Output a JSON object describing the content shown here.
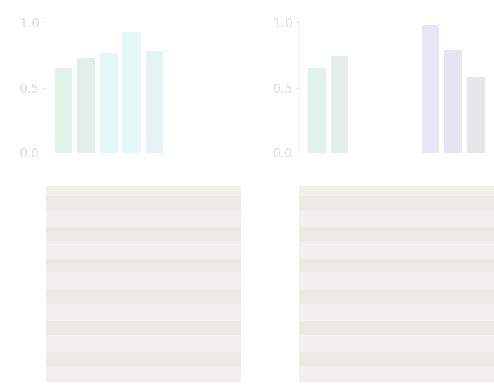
{
  "chart_data": [
    {
      "type": "bar",
      "categories": [
        null,
        null,
        null,
        null,
        null
      ],
      "values": [
        0.65,
        0.73,
        0.76,
        0.93,
        0.78
      ],
      "colors": [
        "#e3f3ea",
        "#e2eee6",
        "#e4f7f7",
        "#e4f8f8",
        "#e6f3f6"
      ],
      "ylim": [
        0,
        1.0
      ],
      "yticks": [
        {
          "value": 0,
          "label": "0.0"
        },
        {
          "value": 0.5,
          "label": "0.5"
        },
        {
          "value": 1.0,
          "label": "1.0"
        }
      ],
      "tick_labels": "y"
    },
    {
      "type": "bar",
      "categories": [
        null,
        null,
        null,
        null,
        null,
        null,
        null,
        null
      ],
      "values": [
        0.65,
        0.74,
        null,
        null,
        null,
        0.98,
        0.79,
        0.58
      ],
      "colors": [
        "#e3f3ea",
        "#e2eee6",
        null,
        null,
        null,
        "#e6e6f4",
        "#e6e6f2",
        "#e6e6e8"
      ],
      "ylim": [
        0,
        1.0
      ],
      "yticks": [
        {
          "value": 0,
          "label": "0.0"
        },
        {
          "value": 0.5,
          "label": "0.5"
        },
        {
          "value": 1.0,
          "label": "1.0"
        }
      ],
      "tick_labels": "y"
    }
  ]
}
